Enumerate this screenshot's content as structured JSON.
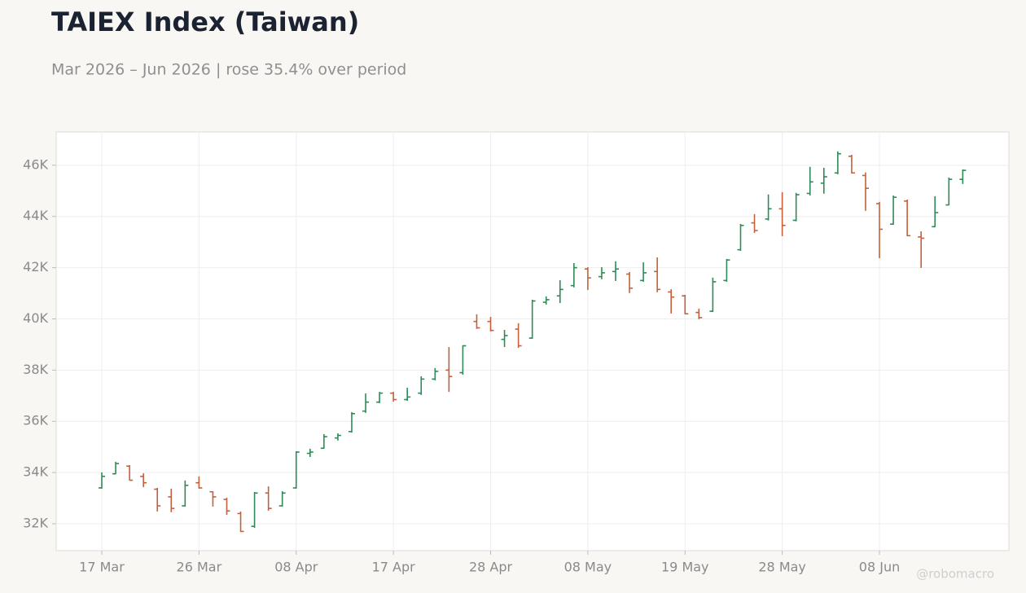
{
  "chart_data": {
    "type": "ohlc",
    "title": "TAIEX Index (Taiwan)",
    "subtitle": "Mar 2026 – Jun 2026 | rose 35.4% over period",
    "watermark": "@robomacro",
    "categories": [
      "17 Mar",
      null,
      null,
      null,
      null,
      null,
      null,
      "26 Mar",
      null,
      null,
      null,
      null,
      null,
      null,
      "08 Apr",
      null,
      null,
      null,
      null,
      null,
      null,
      "17 Apr",
      null,
      null,
      null,
      null,
      null,
      null,
      "28 Apr",
      null,
      null,
      null,
      null,
      null,
      null,
      "08 May",
      null,
      null,
      null,
      null,
      null,
      null,
      "19 May",
      null,
      null,
      null,
      null,
      null,
      null,
      "28 May",
      null,
      null,
      null,
      null,
      null,
      null,
      "08 Jun",
      null,
      null,
      null,
      null,
      null,
      null
    ],
    "open": [
      33400,
      33950,
      34250,
      33850,
      33350,
      33050,
      32700,
      33600,
      33250,
      32950,
      32400,
      31900,
      33200,
      32700,
      33400,
      34750,
      34950,
      35350,
      35600,
      36400,
      36750,
      37100,
      36850,
      37100,
      37650,
      38000,
      37900,
      39900,
      39900,
      39200,
      39600,
      39250,
      40650,
      40900,
      41300,
      41950,
      41650,
      41850,
      41750,
      41500,
      41850,
      41050,
      40900,
      40250,
      40300,
      41500,
      42700,
      43750,
      43900,
      44300,
      43850,
      44900,
      45300,
      45700,
      46350,
      45600,
      44500,
      43700,
      44600,
      43200,
      43600,
      44450,
      45450
    ],
    "high": [
      34005,
      34420,
      34290,
      33970,
      33400,
      33370,
      33690,
      33850,
      33270,
      33020,
      32480,
      33240,
      33460,
      33270,
      34830,
      34930,
      35500,
      35530,
      36360,
      37090,
      37150,
      37150,
      37310,
      37760,
      38080,
      38900,
      38970,
      40180,
      40080,
      39570,
      39830,
      40750,
      40880,
      41510,
      42180,
      42020,
      42020,
      42250,
      41830,
      42210,
      42400,
      41160,
      40940,
      40400,
      41610,
      42340,
      43710,
      44090,
      44860,
      44950,
      44920,
      45940,
      45900,
      46540,
      46410,
      45720,
      44570,
      44820,
      44660,
      43420,
      44790,
      45520,
      45840
    ],
    "low": [
      33370,
      33940,
      33690,
      33430,
      32480,
      32450,
      32670,
      33370,
      32670,
      32350,
      31680,
      31840,
      32510,
      32670,
      33370,
      34610,
      34930,
      35250,
      35560,
      36330,
      36710,
      36770,
      36800,
      37030,
      37600,
      37150,
      37820,
      39610,
      39510,
      38900,
      38870,
      39220,
      40560,
      40620,
      41230,
      41130,
      41550,
      41480,
      41010,
      41450,
      41040,
      40210,
      40180,
      39990,
      40270,
      41450,
      42660,
      43360,
      43840,
      43230,
      43810,
      44820,
      44890,
      45650,
      45680,
      44220,
      42370,
      43680,
      43230,
      41990,
      43580,
      44440,
      45270
    ],
    "close": [
      33850,
      34350,
      33700,
      33600,
      32700,
      32600,
      33500,
      33400,
      33050,
      32500,
      31700,
      33200,
      32600,
      33200,
      34800,
      34800,
      35400,
      35450,
      36300,
      36750,
      37100,
      36850,
      36950,
      37650,
      37950,
      37750,
      38950,
      39650,
      39550,
      39350,
      38950,
      40700,
      40750,
      41150,
      42000,
      41600,
      41800,
      41950,
      41200,
      41800,
      41150,
      40850,
      40200,
      40050,
      41450,
      42300,
      43650,
      43450,
      44300,
      43650,
      44850,
      45350,
      45550,
      46450,
      45700,
      45100,
      43500,
      44750,
      43250,
      43150,
      44150,
      45450,
      45800
    ],
    "up_color": "#2e8b57",
    "down_color": "#c4603c",
    "ylim": [
      30950,
      47300
    ],
    "yticks": [
      {
        "value": 32000,
        "label": "32K"
      },
      {
        "value": 34000,
        "label": "34K"
      },
      {
        "value": 36000,
        "label": "36K"
      },
      {
        "value": 38000,
        "label": "38K"
      },
      {
        "value": 40000,
        "label": "40K"
      },
      {
        "value": 42000,
        "label": "42K"
      },
      {
        "value": 44000,
        "label": "44K"
      },
      {
        "value": 46000,
        "label": "46K"
      }
    ],
    "grid": true
  }
}
